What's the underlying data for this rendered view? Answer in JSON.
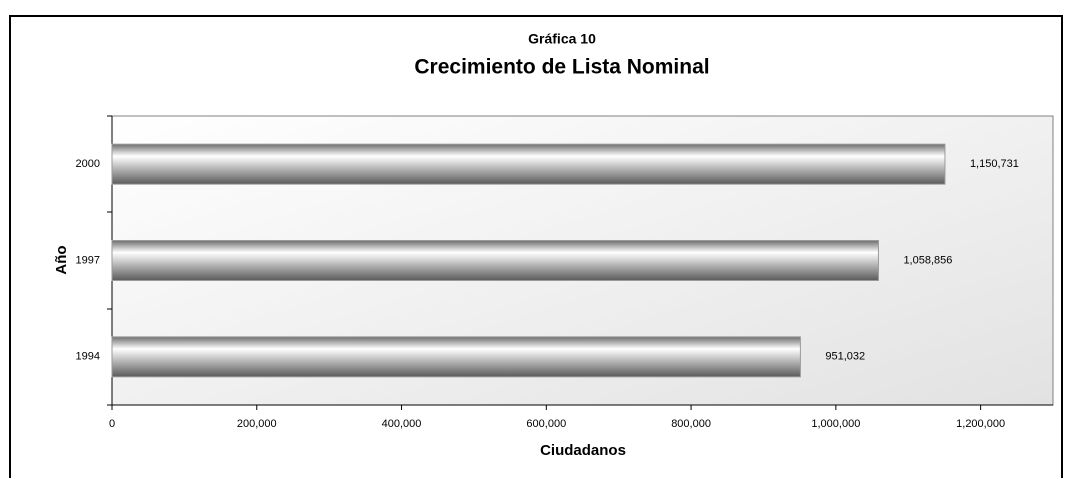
{
  "chart_data": {
    "type": "barh",
    "title": "Crecimiento de Lista Nominal",
    "subtitle": "Gráfica 10",
    "categories": [
      "1994",
      "1997",
      "2000"
    ],
    "values": [
      951032,
      1058856,
      1150731
    ],
    "value_labels": [
      "951,032",
      "1,058,856",
      "1,150,731"
    ],
    "color": "#9a9a9a",
    "xlabel": "Ciudadanos",
    "ylabel": "Año",
    "xlim": [
      0,
      1300000
    ],
    "xticks": [
      0,
      {
        "value": 200000,
        "label": "200,000"
      },
      {
        "value": 400000,
        "label": "400,000"
      },
      {
        "value": 600000,
        "label": "600,000"
      },
      {
        "value": 800000,
        "label": "800,000"
      },
      {
        "value": 1000000,
        "label": "1,000,000"
      },
      {
        "value": 1200000,
        "label": "1,200,000"
      }
    ],
    "grid": false
  }
}
